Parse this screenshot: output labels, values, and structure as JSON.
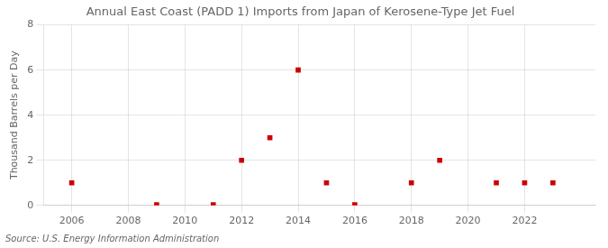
{
  "chart_data": {
    "type": "scatter",
    "title": "Annual East Coast (PADD 1) Imports from Japan of Kerosene-Type Jet Fuel",
    "ylabel": "Thousand Barrels per Day",
    "annotations": [
      "Source: U.S. Energy Information Administration"
    ],
    "x": [
      2006,
      2009,
      2011,
      2012,
      2013,
      2014,
      2015,
      2016,
      2018,
      2019,
      2021,
      2022,
      2023
    ],
    "values": [
      1,
      0.03,
      0.03,
      2,
      3,
      6,
      1,
      0.03,
      1,
      2,
      1,
      1,
      1
    ],
    "color": "#cc0000",
    "marker": "square",
    "xlim": [
      2005.0,
      2024.5
    ],
    "xticks": [
      2006,
      2008,
      2010,
      2012,
      2014,
      2016,
      2018,
      2020,
      2022
    ],
    "ylim": [
      0,
      8
    ],
    "yticks": [
      0,
      2,
      4,
      6,
      8
    ],
    "grid": true
  }
}
